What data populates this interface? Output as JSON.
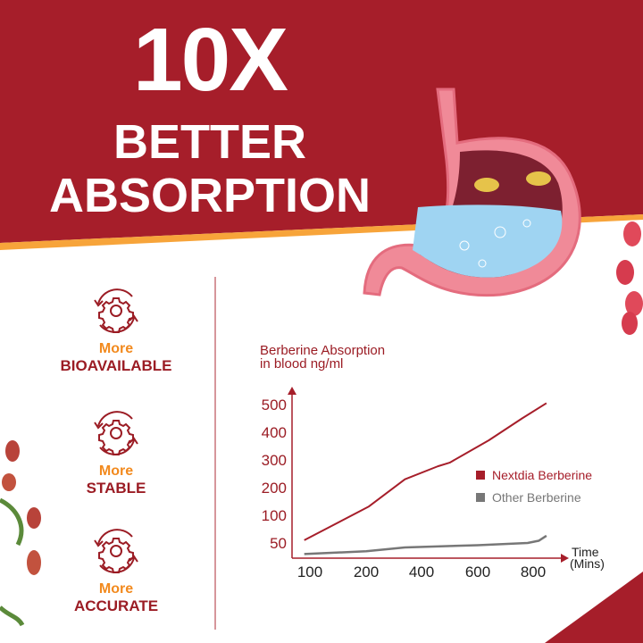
{
  "headline": {
    "line1": "10X",
    "line2": "BETTER",
    "line3": "ABSORPTION"
  },
  "features": [
    {
      "top": "More",
      "bottom": "BIOAVAILABLE",
      "icon": "gear-cycle-icon"
    },
    {
      "top": "More",
      "bottom": "STABLE",
      "icon": "gear-cycle-icon"
    },
    {
      "top": "More",
      "bottom": "ACCURATE",
      "icon": "gear-cycle-icon"
    }
  ],
  "colors": {
    "brand_red": "#a61e2a",
    "accent_orange": "#f28a1e",
    "other_grey": "#777777"
  },
  "chart_data": {
    "type": "line",
    "title": "Berberine Absorption\nin blood ng/ml",
    "title_lines": [
      "Berberine Absorption",
      "in blood ng/ml"
    ],
    "xlabel_lines": [
      "Time",
      "(Mins)"
    ],
    "x_ticks": [
      100,
      200,
      400,
      600,
      800
    ],
    "y_ticks": [
      50,
      100,
      200,
      300,
      400,
      500
    ],
    "grid": false,
    "legend_placement": "right",
    "series": [
      {
        "name": "Nextdia Berberine",
        "color": "#a61e2a",
        "points": [
          [
            90,
            55
          ],
          [
            210,
            132
          ],
          [
            340,
            230
          ],
          [
            458,
            277
          ],
          [
            500,
            290
          ],
          [
            640,
            371
          ],
          [
            760,
            450
          ],
          [
            848,
            505
          ]
        ]
      },
      {
        "name": "Other Berberine",
        "color": "#777777",
        "points": [
          [
            90,
            30
          ],
          [
            200,
            35
          ],
          [
            340,
            42
          ],
          [
            600,
            46
          ],
          [
            780,
            50
          ],
          [
            820,
            54
          ],
          [
            848,
            63
          ]
        ]
      }
    ]
  }
}
